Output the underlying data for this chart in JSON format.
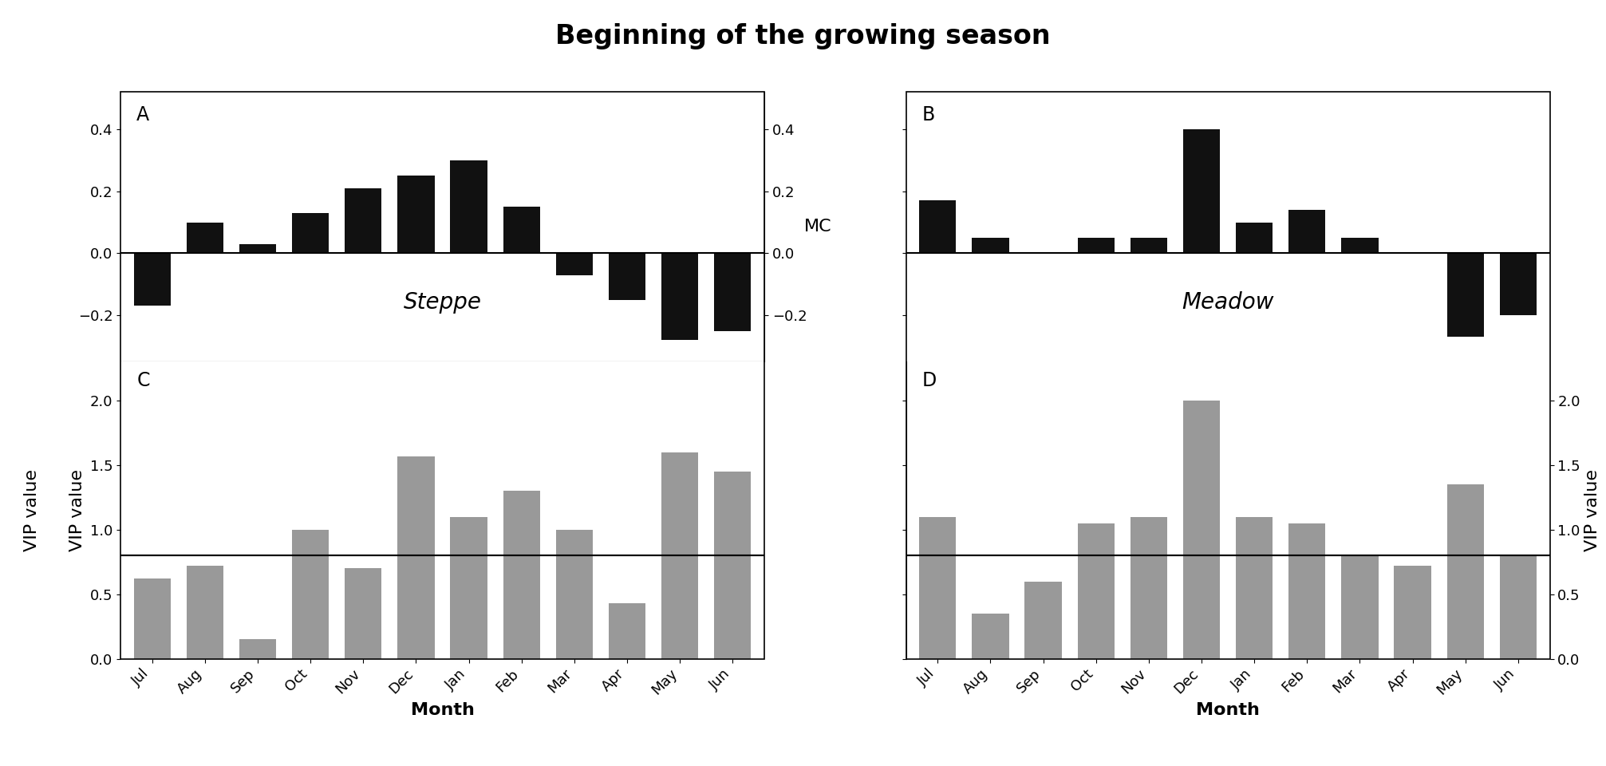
{
  "title": "Beginning of the growing season",
  "months": [
    "Jul",
    "Aug",
    "Sep",
    "Oct",
    "Nov",
    "Dec",
    "Jan",
    "Feb",
    "Mar",
    "Apr",
    "May",
    "Jun"
  ],
  "steppe_mc": [
    -0.17,
    0.1,
    0.03,
    0.13,
    0.21,
    0.25,
    0.3,
    0.15,
    -0.07,
    -0.15,
    -0.28,
    -0.25
  ],
  "meadow_mc": [
    0.17,
    0.05,
    0.0,
    0.05,
    0.05,
    0.4,
    0.1,
    0.14,
    0.05,
    0.0,
    -0.27,
    -0.2
  ],
  "steppe_vip": [
    0.62,
    0.72,
    0.15,
    1.0,
    0.7,
    1.57,
    1.1,
    1.3,
    1.0,
    0.43,
    1.6,
    1.45
  ],
  "meadow_vip": [
    1.1,
    0.35,
    0.6,
    1.05,
    1.1,
    2.0,
    1.1,
    1.05,
    0.8,
    0.72,
    1.35,
    0.8
  ],
  "mc_ylim": [
    -0.35,
    0.52
  ],
  "vip_ylim": [
    0.0,
    2.3
  ],
  "mc_yticks": [
    -0.2,
    0.0,
    0.2,
    0.4
  ],
  "vip_yticks": [
    0.0,
    0.5,
    1.0,
    1.5,
    2.0
  ],
  "vip_threshold": 0.8,
  "bar_color_black": "#111111",
  "bar_color_gray": "#999999",
  "panel_labels": [
    "A",
    "B",
    "C",
    "D"
  ],
  "label_steppe": "Steppe",
  "label_meadow": "Meadow",
  "mc_label": "MC",
  "ylabel_vip": "VIP value",
  "xlabel": "Month",
  "title_fontsize": 24,
  "tick_fontsize": 13,
  "label_fontsize": 16,
  "panel_label_fontsize": 17,
  "italic_fontsize": 20
}
